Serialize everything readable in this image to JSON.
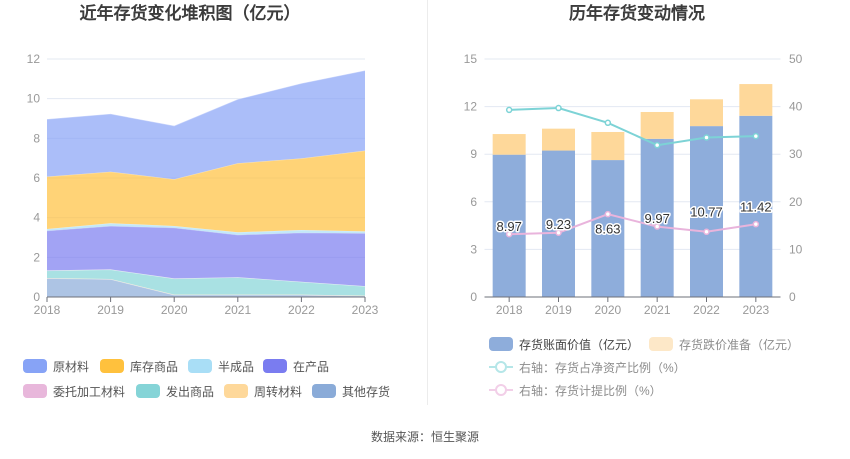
{
  "chart_data": [
    {
      "type": "area",
      "stacked": true,
      "title": "近年存货变化堆积图（亿元）",
      "xlabel": "",
      "ylabel": "",
      "categories": [
        "2018",
        "2019",
        "2020",
        "2021",
        "2022",
        "2023"
      ],
      "yticks": [
        "0",
        "2",
        "4",
        "6",
        "8",
        "10",
        "12"
      ],
      "ylim": [
        0,
        12
      ],
      "grid": true,
      "legend_position": "bottom",
      "series": [
        {
          "name": "原材料",
          "color": "#87a3f6",
          "values": [
            2.9,
            2.91,
            2.69,
            3.23,
            3.78,
            4.04
          ]
        },
        {
          "name": "库存商品",
          "color": "#ffc13d",
          "values": [
            2.64,
            2.6,
            2.36,
            3.48,
            3.61,
            4.07
          ]
        },
        {
          "name": "半成品",
          "color": "#a9def6",
          "values": [
            0.09,
            0.14,
            0.09,
            0.13,
            0.14,
            0.1
          ]
        },
        {
          "name": "在产品",
          "color": "#7a7cf0",
          "values": [
            2.0,
            2.19,
            2.55,
            2.13,
            2.47,
            2.66
          ]
        },
        {
          "name": "委托加工材料",
          "color": "#e8b7db",
          "values": [
            0.01,
            0.01,
            0.01,
            0.01,
            0.01,
            0.01
          ]
        },
        {
          "name": "发出商品",
          "color": "#85d4d7",
          "values": [
            0.37,
            0.47,
            0.81,
            0.87,
            0.64,
            0.47
          ]
        },
        {
          "name": "周转材料",
          "color": "#fed89a",
          "values": [
            0.02,
            0.02,
            0.02,
            0.02,
            0.02,
            0.02
          ]
        },
        {
          "name": "其他存货",
          "color": "#8aabd8",
          "values": [
            0.94,
            0.89,
            0.1,
            0.1,
            0.1,
            0.05
          ]
        }
      ]
    },
    {
      "type": "bar",
      "stacked": true,
      "title": "历年存货变动情况",
      "xlabel": "",
      "ylabel": "",
      "categories": [
        "2018",
        "2019",
        "2020",
        "2021",
        "2022",
        "2023"
      ],
      "yticks": [
        "0",
        "3",
        "6",
        "9",
        "12",
        "15"
      ],
      "ylim": [
        0,
        15
      ],
      "y2ticks": [
        "0",
        "10",
        "20",
        "30",
        "40",
        "50"
      ],
      "y2lim": [
        0,
        50
      ],
      "grid": true,
      "legend_position": "bottom",
      "series": [
        {
          "name": "存货账面价值（亿元）",
          "kind": "bar",
          "axis": "left",
          "color": "#8eaddb",
          "values": [
            8.97,
            9.23,
            8.63,
            9.97,
            10.77,
            11.42
          ],
          "labels": [
            "8.97",
            "9.23",
            "8.63",
            "9.97",
            "10.77",
            "11.42"
          ]
        },
        {
          "name": "存货跌价准备（亿元）",
          "kind": "bar",
          "axis": "left",
          "color": "#fed89a",
          "legend_color": "#fde8c8",
          "values": [
            1.3,
            1.38,
            1.77,
            1.69,
            1.69,
            2.0
          ]
        },
        {
          "name": "右轴：存货占净资产比例（%）",
          "kind": "line",
          "axis": "right",
          "color": "#7dd3d6",
          "legend_color": "#b5e6e8",
          "values": [
            39.3,
            39.7,
            36.6,
            31.9,
            33.5,
            33.8
          ]
        },
        {
          "name": "右轴：存货计提比例（%）",
          "kind": "line",
          "axis": "right",
          "color": "#e9b4dc",
          "legend_color": "#f2cfe8",
          "values": [
            13.2,
            13.5,
            17.4,
            14.8,
            13.7,
            15.3
          ]
        }
      ]
    }
  ],
  "footer": {
    "source": "数据来源：恒生聚源"
  }
}
